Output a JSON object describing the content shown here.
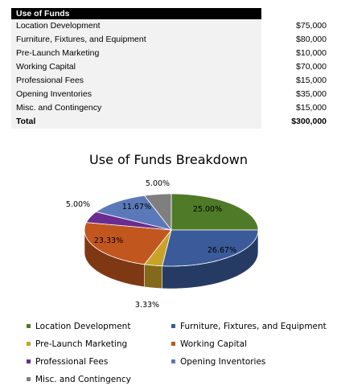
{
  "table": {
    "header": "Use of Funds",
    "rows": [
      {
        "label": "Location Development",
        "amount": "$75,000"
      },
      {
        "label": "Furniture, Fixtures, and Equipment",
        "amount": "$80,000"
      },
      {
        "label": "Pre-Launch Marketing",
        "amount": "$10,000"
      },
      {
        "label": "Working Capital",
        "amount": "$70,000"
      },
      {
        "label": "Professional Fees",
        "amount": "$15,000"
      },
      {
        "label": "Opening Inventories",
        "amount": "$35,000"
      },
      {
        "label": "Misc. and Contingency",
        "amount": "$15,000"
      }
    ],
    "total_label": "Total",
    "total_amount": "$300,000"
  },
  "chart_data": {
    "type": "pie",
    "title": "Use of Funds Breakdown",
    "categories": [
      "Location Development",
      "Furniture, Fixtures, and Equipment",
      "Pre-Launch Marketing",
      "Working Capital",
      "Professional Fees",
      "Opening Inventories",
      "Misc. and Contingency"
    ],
    "values": [
      75000,
      80000,
      10000,
      70000,
      15000,
      35000,
      15000
    ],
    "labels": [
      "25.00%",
      "26.67%",
      "3.33%",
      "23.33%",
      "5.00%",
      "11.67%",
      "5.00%"
    ],
    "colors": [
      "#4f7a28",
      "#3b5a9a",
      "#c9a227",
      "#c2561f",
      "#6a2c8f",
      "#5b79b8",
      "#7f7f7f"
    ],
    "legend_position": "bottom",
    "style": "3d"
  }
}
